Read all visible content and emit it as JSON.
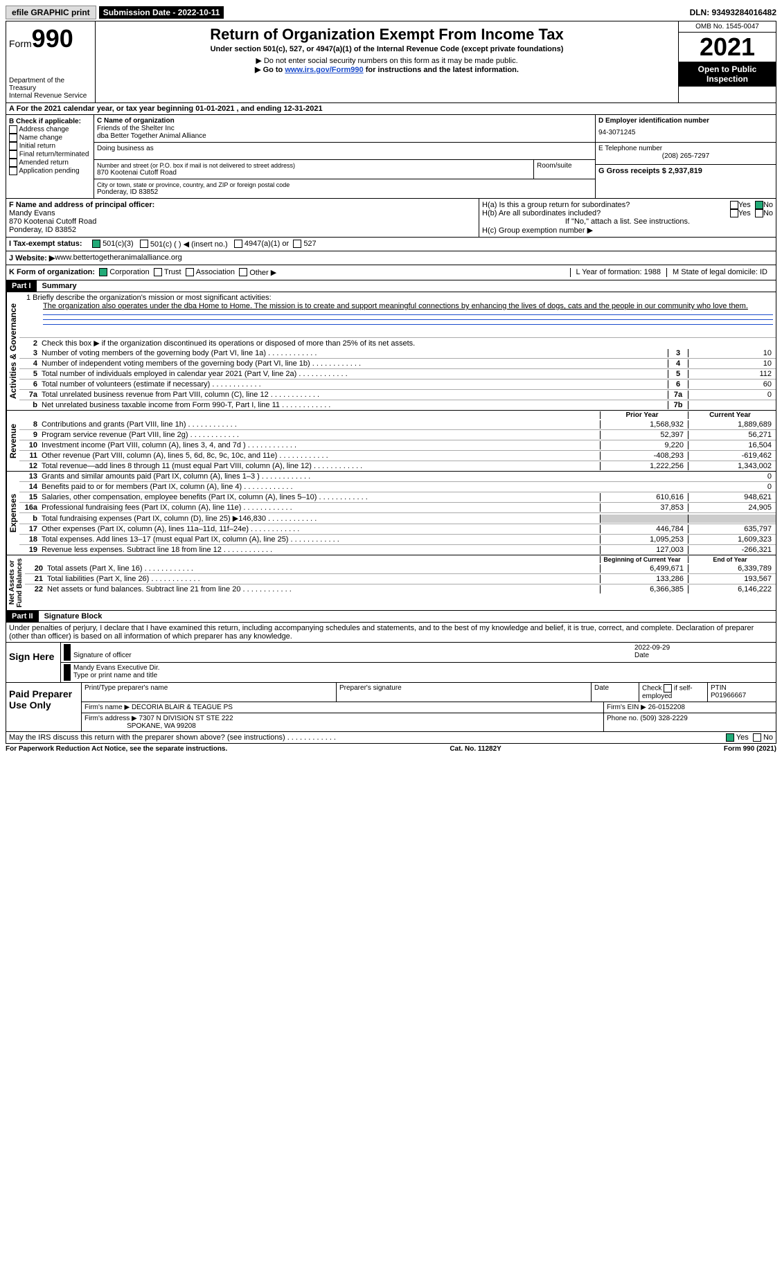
{
  "top": {
    "efile": "efile GRAPHIC print",
    "sub_date_lbl": "Submission Date - 2022-10-11",
    "dln": "DLN: 93493284016482"
  },
  "header": {
    "form_word": "Form",
    "form_no": "990",
    "dept": "Department of the Treasury\nInternal Revenue Service",
    "title": "Return of Organization Exempt From Income Tax",
    "sub1": "Under section 501(c), 527, or 4947(a)(1) of the Internal Revenue Code (except private foundations)",
    "sub2": "▶ Do not enter social security numbers on this form as it may be made public.",
    "sub3_pre": "▶ Go to ",
    "sub3_link": "www.irs.gov/Form990",
    "sub3_post": " for instructions and the latest information.",
    "omb": "OMB No. 1545-0047",
    "year": "2021",
    "otp": "Open to Public Inspection"
  },
  "period": "A  For the 2021 calendar year, or tax year beginning 01-01-2021    , and ending 12-31-2021",
  "secB": {
    "chk_label": "B Check if applicable:",
    "opts": [
      "Address change",
      "Name change",
      "Initial return",
      "Final return/terminated",
      "Amended return",
      "Application pending"
    ],
    "c_lbl": "C Name of organization",
    "c_name1": "Friends of the Shelter Inc",
    "c_name2": "dba Better Together Animal Alliance",
    "dba": "Doing business as",
    "street_lbl": "Number and street (or P.O. box if mail is not delivered to street address)",
    "street": "870 Kootenai Cutoff Road",
    "room_lbl": "Room/suite",
    "city_lbl": "City or town, state or province, country, and ZIP or foreign postal code",
    "city": "Ponderay, ID  83852",
    "d_lbl": "D Employer identification number",
    "d_val": "94-3071245",
    "e_lbl": "E Telephone number",
    "e_val": "(208) 265-7297",
    "g_lbl": "G Gross receipts $ 2,937,819"
  },
  "secF": {
    "f_lbl": "F Name and address of principal officer:",
    "f_name": "Mandy Evans",
    "f_addr1": "870 Kootenai Cutoff Road",
    "f_addr2": "Ponderay, ID  83852",
    "ha": "H(a)  Is this a group return for subordinates?",
    "hb": "H(b)  Are all subordinates included?",
    "hb_note": "If \"No,\" attach a list. See instructions.",
    "hc": "H(c)  Group exemption number ▶"
  },
  "secI": {
    "lbl": "I    Tax-exempt status:",
    "o1": "501(c)(3)",
    "o2": "501(c) (  ) ◀ (insert no.)",
    "o3": "4947(a)(1) or",
    "o4": "527"
  },
  "secJ": {
    "lbl": "J   Website: ▶",
    "val": "  www.bettertogetheranimalalliance.org"
  },
  "secK": {
    "lbl": "K Form of organization:",
    "o1": "Corporation",
    "o2": "Trust",
    "o3": "Association",
    "o4": "Other ▶",
    "l": "L Year of formation: 1988",
    "m": "M State of legal domicile: ID"
  },
  "part1": {
    "hdr": "Part I",
    "title": "Summary",
    "mission_lbl": "1  Briefly describe the organization's mission or most significant activities:",
    "mission": "The organization also operates under the dba Home to Home. The mission is to create and support meaningful connections by enhancing the lives of dogs, cats and the people in our community who love them.",
    "line2": "Check this box ▶      if the organization discontinued its operations or disposed of more than 25% of its net assets."
  },
  "gov_lines": [
    {
      "n": "3",
      "t": "Number of voting members of the governing body (Part VI, line 1a)",
      "box": "3",
      "v": "10"
    },
    {
      "n": "4",
      "t": "Number of independent voting members of the governing body (Part VI, line 1b)",
      "box": "4",
      "v": "10"
    },
    {
      "n": "5",
      "t": "Total number of individuals employed in calendar year 2021 (Part V, line 2a)",
      "box": "5",
      "v": "112"
    },
    {
      "n": "6",
      "t": "Total number of volunteers (estimate if necessary)",
      "box": "6",
      "v": "60"
    },
    {
      "n": "7a",
      "t": "Total unrelated business revenue from Part VIII, column (C), line 12",
      "box": "7a",
      "v": "0"
    },
    {
      "n": "b",
      "t": "Net unrelated business taxable income from Form 990-T, Part I, line 11",
      "box": "7b",
      "v": ""
    }
  ],
  "rev_hdr": {
    "py": "Prior Year",
    "cy": "Current Year"
  },
  "rev_lines": [
    {
      "n": "8",
      "t": "Contributions and grants (Part VIII, line 1h)",
      "py": "1,568,932",
      "cy": "1,889,689"
    },
    {
      "n": "9",
      "t": "Program service revenue (Part VIII, line 2g)",
      "py": "52,397",
      "cy": "56,271"
    },
    {
      "n": "10",
      "t": "Investment income (Part VIII, column (A), lines 3, 4, and 7d )",
      "py": "9,220",
      "cy": "16,504"
    },
    {
      "n": "11",
      "t": "Other revenue (Part VIII, column (A), lines 5, 6d, 8c, 9c, 10c, and 11e)",
      "py": "-408,293",
      "cy": "-619,462"
    },
    {
      "n": "12",
      "t": "Total revenue—add lines 8 through 11 (must equal Part VIII, column (A), line 12)",
      "py": "1,222,256",
      "cy": "1,343,002"
    }
  ],
  "exp_lines": [
    {
      "n": "13",
      "t": "Grants and similar amounts paid (Part IX, column (A), lines 1–3 )",
      "py": "",
      "cy": "0"
    },
    {
      "n": "14",
      "t": "Benefits paid to or for members (Part IX, column (A), line 4)",
      "py": "",
      "cy": "0"
    },
    {
      "n": "15",
      "t": "Salaries, other compensation, employee benefits (Part IX, column (A), lines 5–10)",
      "py": "610,616",
      "cy": "948,621"
    },
    {
      "n": "16a",
      "t": "Professional fundraising fees (Part IX, column (A), line 11e)",
      "py": "37,853",
      "cy": "24,905"
    },
    {
      "n": "b",
      "t": "Total fundraising expenses (Part IX, column (D), line 25) ▶146,830",
      "py": "shade",
      "cy": "shade"
    },
    {
      "n": "17",
      "t": "Other expenses (Part IX, column (A), lines 11a–11d, 11f–24e)",
      "py": "446,784",
      "cy": "635,797"
    },
    {
      "n": "18",
      "t": "Total expenses. Add lines 13–17 (must equal Part IX, column (A), line 25)",
      "py": "1,095,253",
      "cy": "1,609,323"
    },
    {
      "n": "19",
      "t": "Revenue less expenses. Subtract line 18 from line 12",
      "py": "127,003",
      "cy": "-266,321"
    }
  ],
  "na_hdr": {
    "py": "Beginning of Current Year",
    "cy": "End of Year"
  },
  "na_lines": [
    {
      "n": "20",
      "t": "Total assets (Part X, line 16)",
      "py": "6,499,671",
      "cy": "6,339,789"
    },
    {
      "n": "21",
      "t": "Total liabilities (Part X, line 26)",
      "py": "133,286",
      "cy": "193,567"
    },
    {
      "n": "22",
      "t": "Net assets or fund balances. Subtract line 21 from line 20",
      "py": "6,366,385",
      "cy": "6,146,222"
    }
  ],
  "part2": {
    "hdr": "Part II",
    "title": "Signature Block",
    "decl": "Under penalties of perjury, I declare that I have examined this return, including accompanying schedules and statements, and to the best of my knowledge and belief, it is true, correct, and complete. Declaration of preparer (other than officer) is based on all information of which preparer has any knowledge."
  },
  "sign": {
    "here": "Sign Here",
    "sig_lbl": "Signature of officer",
    "date": "2022-09-29",
    "date_lbl": "Date",
    "name": "Mandy Evans  Executive Dir.",
    "name_lbl": "Type or print name and title"
  },
  "prep": {
    "lbl": "Paid Preparer Use Only",
    "h1": "Print/Type preparer's name",
    "h2": "Preparer's signature",
    "h3": "Date",
    "h4_a": "Check",
    "h4_b": "if self-employed",
    "h5": "PTIN",
    "ptin": "P01966667",
    "firm_lbl": "Firm's name    ▶",
    "firm": "DECORIA BLAIR & TEAGUE PS",
    "ein_lbl": "Firm's EIN ▶",
    "ein": "26-0152208",
    "addr_lbl": "Firm's address ▶",
    "addr1": "7307 N DIVISION ST STE 222",
    "addr2": "SPOKANE, WA  99208",
    "phone_lbl": "Phone no.",
    "phone": "(509) 328-2229"
  },
  "discuss": "May the IRS discuss this return with the preparer shown above? (see instructions)",
  "yes": "Yes",
  "no": "No",
  "foot": {
    "l": "For Paperwork Reduction Act Notice, see the separate instructions.",
    "c": "Cat. No. 11282Y",
    "r": "Form 990 (2021)"
  }
}
